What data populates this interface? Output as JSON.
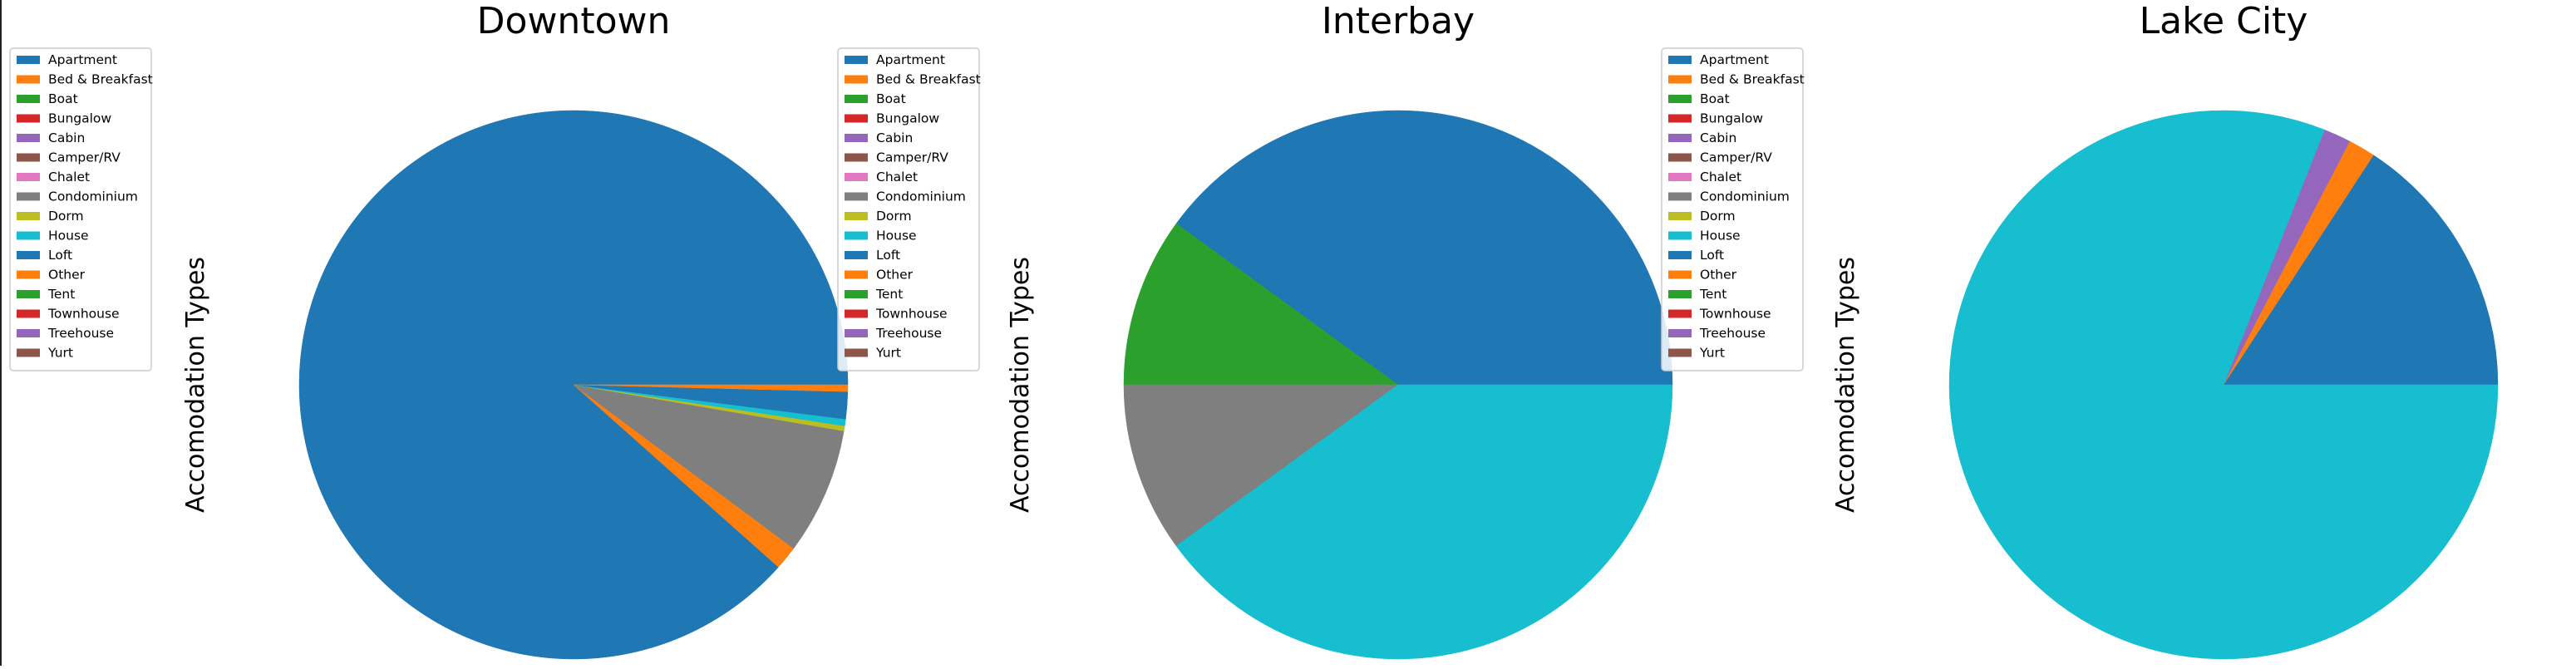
{
  "chart_data": [
    {
      "type": "pie",
      "title": "Downtown",
      "ylabel": "Accomodation Types",
      "legend_position": "top-left",
      "categories": [
        "Apartment",
        "Bed & Breakfast",
        "Boat",
        "Bungalow",
        "Cabin",
        "Camper/RV",
        "Chalet",
        "Condominium",
        "Dorm",
        "House",
        "Loft",
        "Other",
        "Tent",
        "Townhouse",
        "Treehouse",
        "Yurt"
      ],
      "values": [
        88.6,
        1.4,
        0,
        0,
        0,
        0,
        0,
        7.5,
        0.3,
        0.4,
        1.6,
        0.4,
        0,
        0,
        0,
        0
      ]
    },
    {
      "type": "pie",
      "title": "Interbay",
      "ylabel": "Accomodation Types",
      "legend_position": "top-right",
      "categories": [
        "Apartment",
        "Bed & Breakfast",
        "Boat",
        "Bungalow",
        "Cabin",
        "Camper/RV",
        "Chalet",
        "Condominium",
        "Dorm",
        "House",
        "Loft",
        "Other",
        "Tent",
        "Townhouse",
        "Treehouse",
        "Yurt"
      ],
      "values": [
        40,
        0,
        10,
        0,
        0,
        0,
        0,
        10,
        0,
        40,
        0,
        0,
        0,
        0,
        0,
        0
      ]
    },
    {
      "type": "pie",
      "title": "Lake City",
      "ylabel": "Accomodation Types",
      "legend_position": "top-right",
      "categories": [
        "Apartment",
        "Bed & Breakfast",
        "Boat",
        "Bungalow",
        "Cabin",
        "Camper/RV",
        "Chalet",
        "Condominium",
        "Dorm",
        "House",
        "Loft",
        "Other",
        "Tent",
        "Townhouse",
        "Treehouse",
        "Yurt"
      ],
      "values": [
        15.8,
        1.6,
        0,
        0,
        1.6,
        0,
        0,
        0,
        0,
        81,
        0,
        0,
        0,
        0,
        0,
        0
      ]
    }
  ],
  "colors": [
    "#1f77b4",
    "#ff7f0e",
    "#2ca02c",
    "#d62728",
    "#9467bd",
    "#8c564b",
    "#e377c2",
    "#7f7f7f",
    "#bcbd22",
    "#17becf",
    "#1f77b4",
    "#ff7f0e",
    "#2ca02c",
    "#d62728",
    "#9467bd",
    "#8c564b"
  ]
}
